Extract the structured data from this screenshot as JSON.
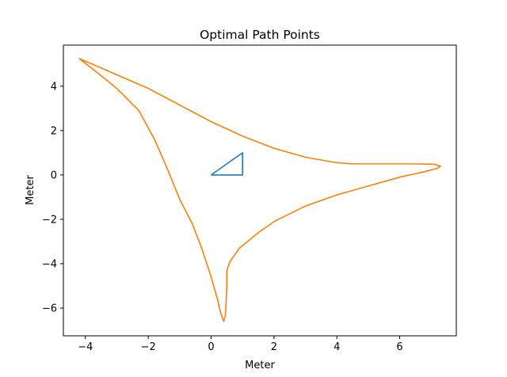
{
  "chart_data": {
    "type": "line",
    "title": "Optimal Path Points",
    "xlabel": "Meter",
    "ylabel": "Meter",
    "xlim": [
      -4.7,
      7.8
    ],
    "ylim": [
      -7.25,
      5.85
    ],
    "xticks": [
      -4,
      -2,
      0,
      2,
      4,
      6
    ],
    "yticks": [
      -6,
      -4,
      -2,
      0,
      2,
      4
    ],
    "xtick_labels": [
      "−4",
      "−2",
      "0",
      "2",
      "4",
      "6"
    ],
    "ytick_labels": [
      "−6",
      "−4",
      "−2",
      "0",
      "2",
      "4"
    ],
    "grid": false,
    "legend": "none",
    "series": [
      {
        "color": "#1f77b4",
        "x": [
          0,
          1,
          1,
          0
        ],
        "y": [
          0,
          1,
          0,
          0
        ]
      },
      {
        "color": "#ff7f0e",
        "x": [
          -4.2,
          -3.3,
          -2.0,
          -1.0,
          0.0,
          1.0,
          2.0,
          3.0,
          4.0,
          4.5,
          5.0,
          5.5,
          6.5,
          7.1,
          7.3,
          7.2,
          6.8,
          6.0,
          5.0,
          4.0,
          3.0,
          2.0,
          1.5,
          0.9,
          0.6,
          0.5,
          0.5,
          0.48,
          0.47,
          0.45,
          0.4,
          0.3,
          0.2,
          0.0,
          -0.3,
          -0.6,
          -1.0,
          -1.4,
          -1.8,
          -2.3,
          -3.0,
          -3.7,
          -4.2
        ],
        "y": [
          5.25,
          4.7,
          3.9,
          3.15,
          2.4,
          1.75,
          1.2,
          0.8,
          0.55,
          0.5,
          0.5,
          0.5,
          0.5,
          0.48,
          0.4,
          0.3,
          0.15,
          -0.1,
          -0.5,
          -0.9,
          -1.4,
          -2.1,
          -2.6,
          -3.3,
          -3.9,
          -4.3,
          -5.0,
          -5.6,
          -6.0,
          -6.35,
          -6.6,
          -6.2,
          -5.6,
          -4.6,
          -3.3,
          -2.2,
          -1.1,
          0.3,
          1.6,
          2.9,
          3.9,
          4.7,
          5.25
        ]
      }
    ]
  }
}
